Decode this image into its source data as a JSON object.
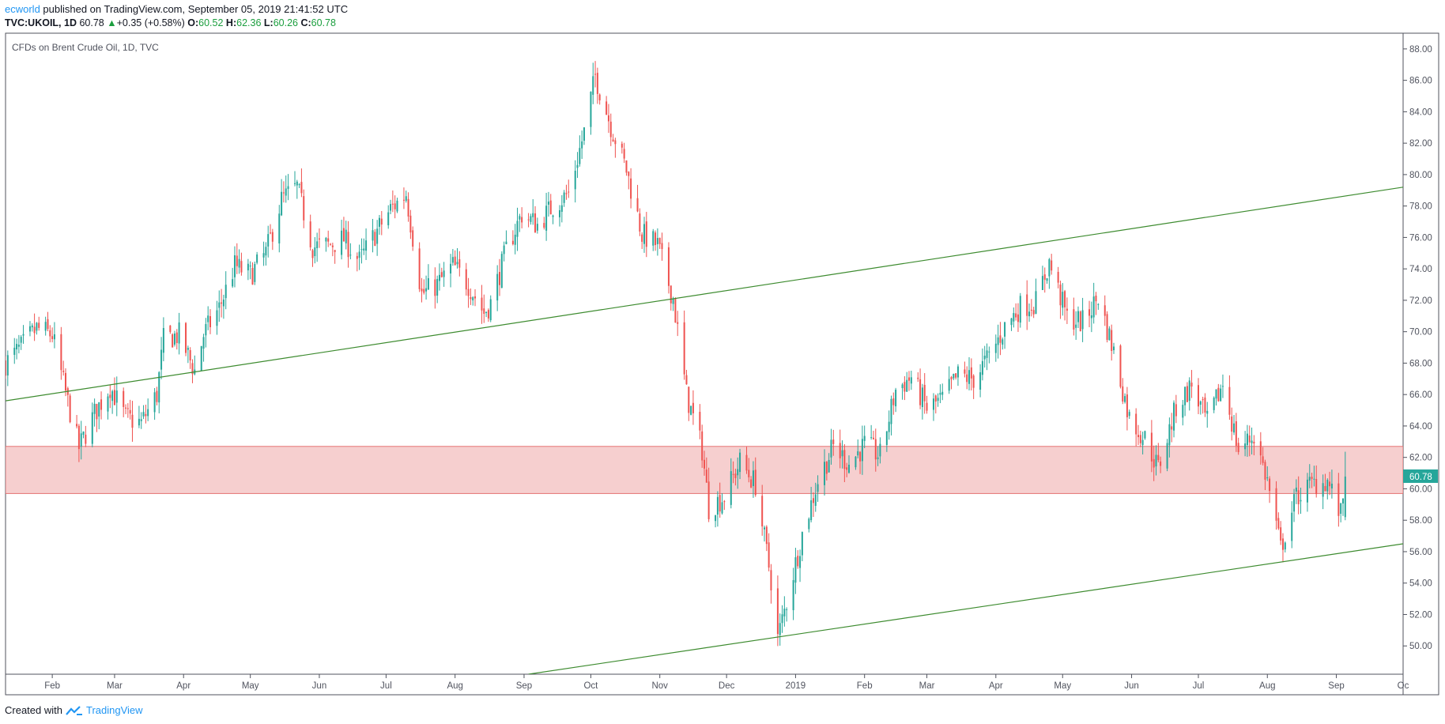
{
  "header": {
    "author": "ecworld",
    "published_text": " published on TradingView.com, September 05, 2019 21:41:52 UTC",
    "symbol": "TVC:UKOIL, 1D",
    "last": "60.78",
    "change": "+0.35 (+0.58%)",
    "o_label": "O:",
    "o_value": "60.52",
    "h_label": "H:",
    "h_value": "62.36",
    "l_label": "L:",
    "l_value": "60.26",
    "c_label": "C:",
    "c_value": "60.78"
  },
  "footer": {
    "created_with": "Created with",
    "brand": "TradingView"
  },
  "colors": {
    "up": "#26a69a",
    "down": "#ef5350",
    "trendline": "#3d8b2f",
    "zone_fill": "#f4c7c7",
    "zone_border": "#e57373",
    "price_tag": "#26a69a"
  },
  "chart_data": {
    "type": "candlestick",
    "title": "CFDs on Brent Crude Oil, 1D, TVC",
    "ylim": [
      48.2,
      89.0
    ],
    "yticks": [
      "50.00",
      "52.00",
      "54.00",
      "56.00",
      "58.00",
      "60.00",
      "62.00",
      "64.00",
      "66.00",
      "68.00",
      "70.00",
      "72.00",
      "74.00",
      "76.00",
      "78.00",
      "80.00",
      "82.00",
      "84.00",
      "86.00",
      "88.00"
    ],
    "x_range": [
      "2018-01-11",
      "2019-10-01"
    ],
    "xticks": [
      {
        "label": "Feb",
        "date": "2018-02-01"
      },
      {
        "label": "Mar",
        "date": "2018-03-01"
      },
      {
        "label": "Apr",
        "date": "2018-04-01"
      },
      {
        "label": "May",
        "date": "2018-05-01"
      },
      {
        "label": "Jun",
        "date": "2018-06-01"
      },
      {
        "label": "Jul",
        "date": "2018-07-01"
      },
      {
        "label": "Aug",
        "date": "2018-08-01"
      },
      {
        "label": "Sep",
        "date": "2018-09-01"
      },
      {
        "label": "Oct",
        "date": "2018-10-01"
      },
      {
        "label": "Nov",
        "date": "2018-11-01"
      },
      {
        "label": "Dec",
        "date": "2018-12-01"
      },
      {
        "label": "2019",
        "date": "2019-01-01"
      },
      {
        "label": "Feb",
        "date": "2019-02-01"
      },
      {
        "label": "Mar",
        "date": "2019-03-01"
      },
      {
        "label": "Apr",
        "date": "2019-04-01"
      },
      {
        "label": "May",
        "date": "2019-05-01"
      },
      {
        "label": "Jun",
        "date": "2019-06-01"
      },
      {
        "label": "Jul",
        "date": "2019-07-01"
      },
      {
        "label": "Aug",
        "date": "2019-08-01"
      },
      {
        "label": "Sep",
        "date": "2019-09-01"
      },
      {
        "label": "Oc",
        "date": "2019-10-01"
      }
    ],
    "last_price": "60.78",
    "closes": [
      [
        "2018-01-11",
        68.0
      ],
      [
        "2018-01-18",
        69.0
      ],
      [
        "2018-01-25",
        70.2
      ],
      [
        "2018-02-01",
        69.8
      ],
      [
        "2018-02-08",
        65.5
      ],
      [
        "2018-02-13",
        62.6
      ],
      [
        "2018-02-20",
        64.8
      ],
      [
        "2018-02-27",
        66.5
      ],
      [
        "2018-03-06",
        64.5
      ],
      [
        "2018-03-13",
        64.2
      ],
      [
        "2018-03-20",
        66.0
      ],
      [
        "2018-03-23",
        69.5
      ],
      [
        "2018-03-30",
        69.8
      ],
      [
        "2018-04-06",
        67.5
      ],
      [
        "2018-04-10",
        69.8
      ],
      [
        "2018-04-17",
        71.5
      ],
      [
        "2018-04-24",
        74.2
      ],
      [
        "2018-05-01",
        73.6
      ],
      [
        "2018-05-08",
        75.0
      ],
      [
        "2018-05-15",
        78.4
      ],
      [
        "2018-05-22",
        79.2
      ],
      [
        "2018-05-29",
        75.4
      ],
      [
        "2018-06-05",
        75.5
      ],
      [
        "2018-06-12",
        75.9
      ],
      [
        "2018-06-19",
        74.5
      ],
      [
        "2018-06-26",
        76.2
      ],
      [
        "2018-07-03",
        77.8
      ],
      [
        "2018-07-10",
        78.8
      ],
      [
        "2018-07-17",
        72.4
      ],
      [
        "2018-07-24",
        73.0
      ],
      [
        "2018-07-31",
        74.2
      ],
      [
        "2018-08-07",
        73.0
      ],
      [
        "2018-08-14",
        71.2
      ],
      [
        "2018-08-17",
        71.8
      ],
      [
        "2018-08-24",
        75.2
      ],
      [
        "2018-08-31",
        77.5
      ],
      [
        "2018-09-07",
        76.8
      ],
      [
        "2018-09-14",
        78.0
      ],
      [
        "2018-09-21",
        78.8
      ],
      [
        "2018-09-28",
        82.7
      ],
      [
        "2018-10-03",
        86.3
      ],
      [
        "2018-10-10",
        83.1
      ],
      [
        "2018-10-17",
        80.3
      ],
      [
        "2018-10-24",
        76.2
      ],
      [
        "2018-10-31",
        75.5
      ],
      [
        "2018-11-07",
        72.1
      ],
      [
        "2018-11-13",
        66.0
      ],
      [
        "2018-11-20",
        62.5
      ],
      [
        "2018-11-23",
        58.8
      ],
      [
        "2018-11-30",
        59.5
      ],
      [
        "2018-12-07",
        61.7
      ],
      [
        "2018-12-14",
        60.3
      ],
      [
        "2018-12-21",
        54.2
      ],
      [
        "2018-12-24",
        50.5
      ],
      [
        "2018-12-28",
        52.8
      ],
      [
        "2019-01-04",
        57.1
      ],
      [
        "2019-01-11",
        60.5
      ],
      [
        "2019-01-18",
        62.7
      ],
      [
        "2019-01-25",
        61.6
      ],
      [
        "2019-02-01",
        62.8
      ],
      [
        "2019-02-08",
        62.1
      ],
      [
        "2019-02-15",
        66.3
      ],
      [
        "2019-02-22",
        67.1
      ],
      [
        "2019-03-01",
        65.1
      ],
      [
        "2019-03-08",
        65.7
      ],
      [
        "2019-03-15",
        67.2
      ],
      [
        "2019-03-22",
        67.0
      ],
      [
        "2019-03-29",
        68.4
      ],
      [
        "2019-04-05",
        70.3
      ],
      [
        "2019-04-12",
        71.6
      ],
      [
        "2019-04-19",
        71.9
      ],
      [
        "2019-04-25",
        74.4
      ],
      [
        "2019-05-03",
        70.9
      ],
      [
        "2019-05-10",
        70.6
      ],
      [
        "2019-05-17",
        72.2
      ],
      [
        "2019-05-24",
        68.7
      ],
      [
        "2019-05-31",
        64.5
      ],
      [
        "2019-06-07",
        63.2
      ],
      [
        "2019-06-13",
        61.3
      ],
      [
        "2019-06-21",
        65.2
      ],
      [
        "2019-06-28",
        66.6
      ],
      [
        "2019-07-05",
        64.2
      ],
      [
        "2019-07-12",
        66.7
      ],
      [
        "2019-07-19",
        62.5
      ],
      [
        "2019-07-26",
        63.4
      ],
      [
        "2019-08-01",
        60.5
      ],
      [
        "2019-08-07",
        56.2
      ],
      [
        "2019-08-14",
        59.5
      ],
      [
        "2019-08-21",
        60.3
      ],
      [
        "2019-08-28",
        60.5
      ],
      [
        "2019-09-03",
        58.3
      ],
      [
        "2019-09-05",
        60.78
      ]
    ],
    "support_zone": [
      59.7,
      62.7
    ],
    "trendlines": [
      {
        "from": [
          "2018-01-11",
          65.6
        ],
        "to": [
          "2019-10-01",
          79.2
        ]
      },
      {
        "from": [
          "2018-09-03",
          48.2
        ],
        "to": [
          "2019-10-01",
          56.5
        ]
      }
    ]
  }
}
